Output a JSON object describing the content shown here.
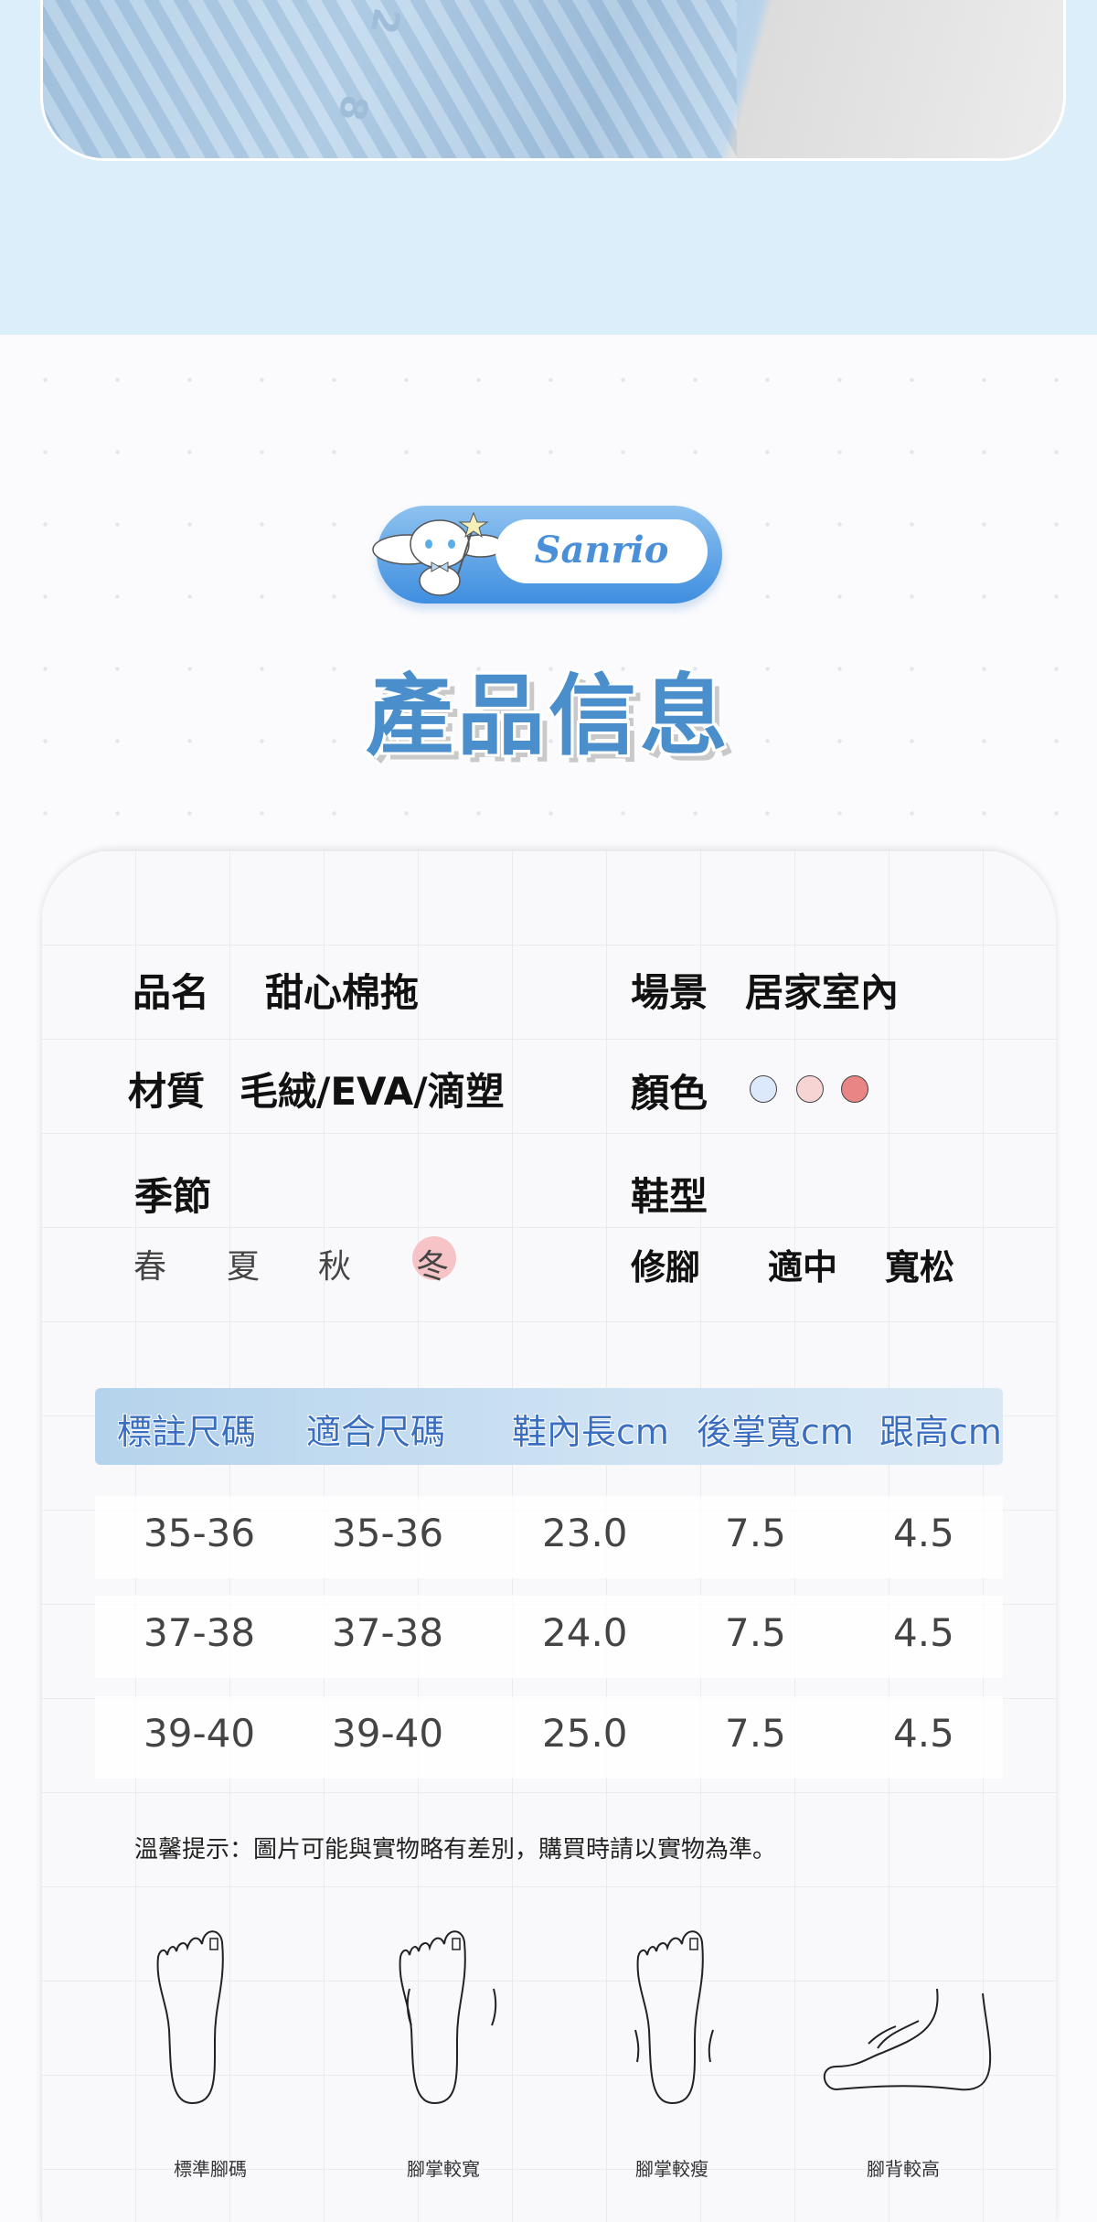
{
  "photo": {
    "alt_marks": [
      "2",
      "8"
    ]
  },
  "logo": {
    "brand": "Sanrio",
    "colors": {
      "badge": "#4a90d9"
    }
  },
  "title": "產品信息",
  "info": {
    "name_label": "品名",
    "name_value": "甜心棉拖",
    "scene_label": "場景",
    "scene_value": "居家室內",
    "material_label": "材質",
    "material_value": "毛絨/EVA/滴塑",
    "color_label": "顏色",
    "colors": [
      "#dce8fb",
      "#f6d4d4",
      "#e98585"
    ],
    "season_label": "季節",
    "seasons": [
      "春",
      "夏",
      "秋",
      "冬"
    ],
    "active_season": "冬",
    "shoe_type_label": "鞋型",
    "shoe_types": [
      "修腳",
      "適中",
      "寬松"
    ]
  },
  "size_table": {
    "headers": [
      "標註尺碼",
      "適合尺碼",
      "鞋內長cm",
      "後掌寬cm",
      "跟高cm"
    ],
    "rows": [
      [
        "35-36",
        "35-36",
        "23.0",
        "7.5",
        "4.5"
      ],
      [
        "37-38",
        "37-38",
        "24.0",
        "7.5",
        "4.5"
      ],
      [
        "39-40",
        "39-40",
        "25.0",
        "7.5",
        "4.5"
      ]
    ]
  },
  "note": "溫馨提示：圖片可能與實物略有差別，購買時請以實物為準。",
  "foot_types": [
    "標準腳碼",
    "腳掌較寬",
    "腳掌較瘦",
    "腳背較高"
  ]
}
